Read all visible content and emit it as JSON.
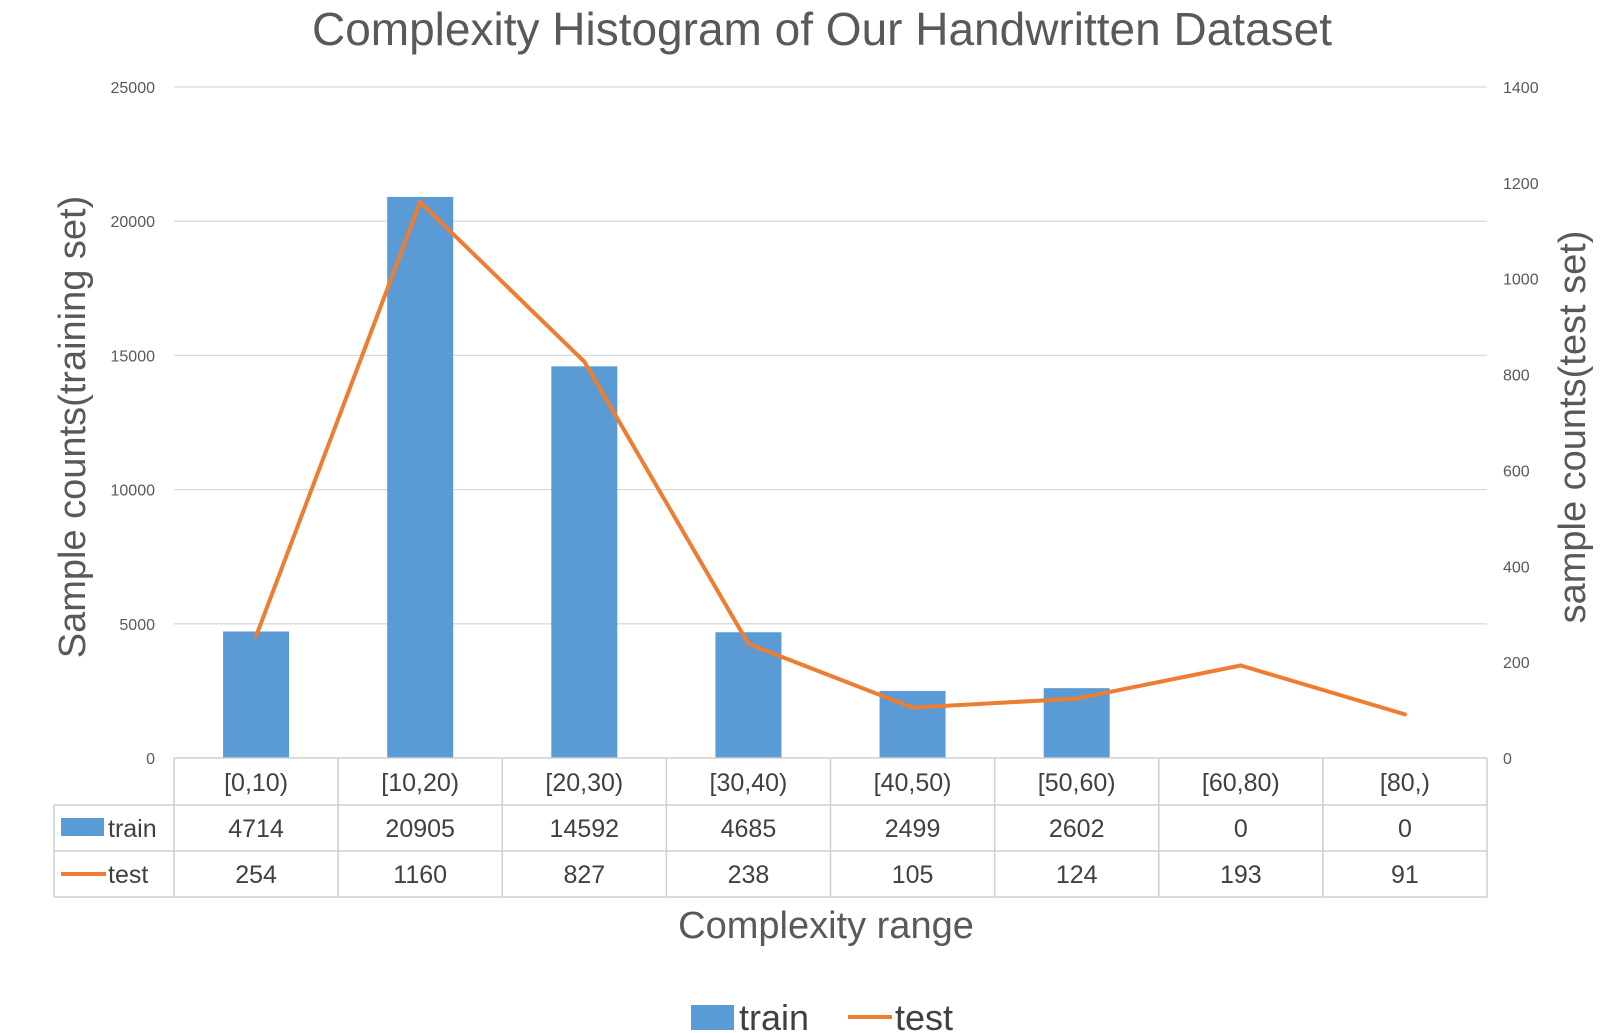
{
  "chart_data": {
    "type": "bar",
    "title": "Complexity Histogram of Our Handwritten Dataset",
    "xlabel": "Complexity range",
    "ylabel": "Sample counts(training set)",
    "ylabel_right": "sample counts(test set)",
    "categories": [
      "[0,10)",
      "[10,20)",
      "[20,30)",
      "[30,40)",
      "[40,50)",
      "[50,60)",
      "[60,80)",
      "[80,)"
    ],
    "ylim": [
      0,
      25000
    ],
    "yticks": [
      0,
      5000,
      10000,
      15000,
      20000,
      25000
    ],
    "ylim_right": [
      0,
      1400
    ],
    "yticks_right": [
      0,
      200,
      400,
      600,
      800,
      1000,
      1200,
      1400
    ],
    "grid": true,
    "legend": "bottom",
    "series": [
      {
        "name": "train",
        "kind": "bar",
        "axis": "left",
        "color": "#5B9BD5",
        "values": [
          4714,
          20905,
          14592,
          4685,
          2499,
          2602,
          0,
          0
        ],
        "labels": [
          "4714",
          "20905",
          "14592",
          "4685",
          "2499",
          "2602",
          "0",
          "0"
        ]
      },
      {
        "name": "test",
        "kind": "line",
        "axis": "right",
        "color": "#ED7D31",
        "values": [
          254,
          1160,
          827,
          238,
          105,
          124,
          193,
          91
        ],
        "labels": [
          "254",
          "1160",
          "827",
          "238",
          "105",
          "124",
          "193",
          "91"
        ]
      }
    ]
  }
}
